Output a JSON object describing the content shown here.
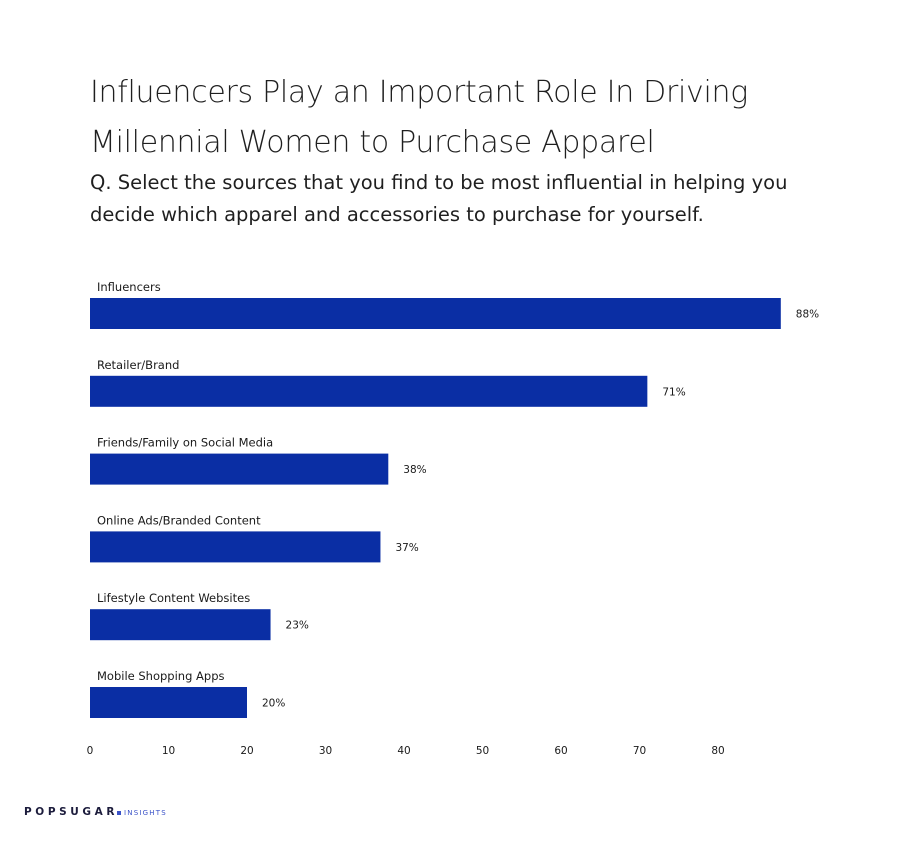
{
  "title": "Influencers Play an Important Role In Driving Millennial Women to Purchase Apparel",
  "subtitle": "Q. Select the sources that you find to be most influential in helping you decide which apparel and accessories to purchase for yourself.",
  "brand": {
    "name": "POPSUGAR",
    "sub": "INSIGHTS"
  },
  "colors": {
    "bar": "#0a2ea4",
    "logo_accent": "#3a52c8"
  },
  "chart_data": {
    "type": "bar",
    "orientation": "horizontal",
    "categories": [
      "Influencers",
      "Retailer/Brand",
      "Friends/Family on Social Media",
      "Online Ads/Branded Content",
      "Lifestyle Content Websites",
      "Mobile Shopping Apps"
    ],
    "values": [
      88,
      71,
      38,
      37,
      23,
      20
    ],
    "value_labels": [
      "88%",
      "71%",
      "38%",
      "37%",
      "23%",
      "20%"
    ],
    "xlim": [
      0,
      88
    ],
    "xticks": [
      0,
      10,
      20,
      30,
      40,
      50,
      60,
      70,
      80
    ],
    "xtick_labels": [
      "0",
      "10",
      "20",
      "30",
      "40",
      "50",
      "60",
      "70",
      "80"
    ],
    "grid": false,
    "legend": "none"
  }
}
